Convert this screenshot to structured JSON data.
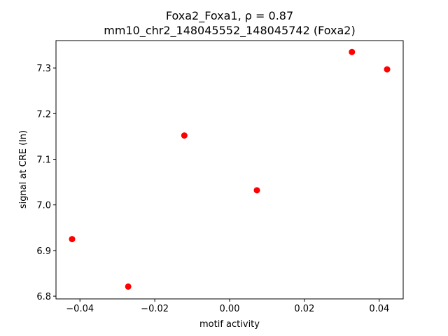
{
  "chart_data": {
    "type": "scatter",
    "title": "Foxa2_Foxa1, ρ = 0.87",
    "subtitle": "mm10_chr2_148045552_148045742 (Foxa2)",
    "x_label": "motif activity",
    "y_label": "signal at CRE (ln)",
    "series": [
      {
        "color": "#ff0000",
        "x": [
          -0.0421,
          -0.0271,
          -0.0121,
          0.0073,
          0.0327,
          0.0421
        ],
        "values": [
          6.925,
          6.821,
          7.152,
          7.032,
          7.335,
          7.297
        ]
      }
    ],
    "xlim": [
      -0.0464,
      0.0464
    ],
    "ylim": [
      6.794,
      7.36
    ],
    "xticks": [
      {
        "value": -0.04,
        "label": "−0.04"
      },
      {
        "value": -0.02,
        "label": "−0.02"
      },
      {
        "value": 0,
        "label": "0.00"
      },
      {
        "value": 0.02,
        "label": "0.02"
      },
      {
        "value": 0.04,
        "label": "0.04"
      }
    ],
    "yticks": [
      6.8,
      6.9,
      {
        "value": 7,
        "label": "7.0"
      },
      7.1,
      7.2,
      7.3
    ],
    "grid": false
  }
}
